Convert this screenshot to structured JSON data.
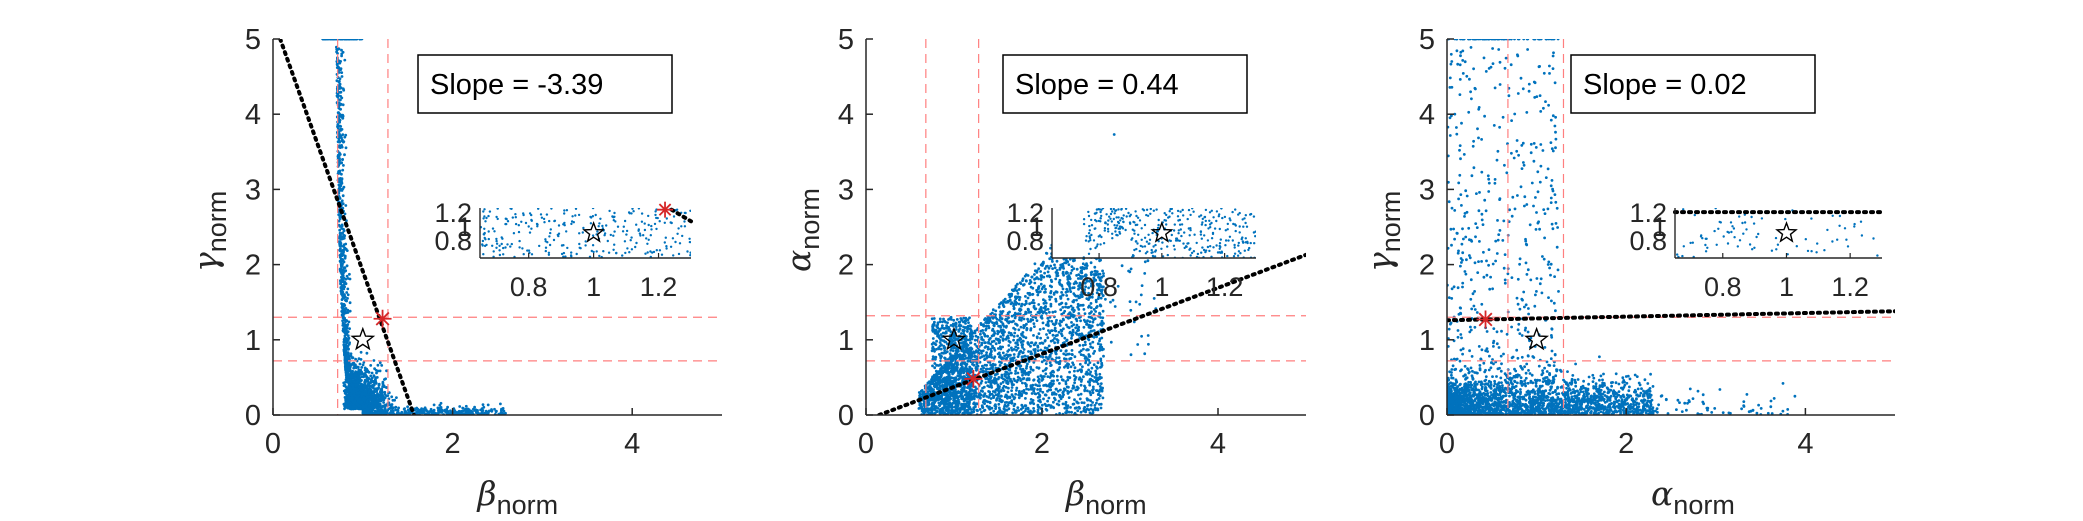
{
  "colors": {
    "points": "#0072BD",
    "guide": "#FF7F7F",
    "fit": "#000000",
    "marker": "#D62728",
    "axis": "#262626"
  },
  "chart_data": [
    {
      "type": "scatter",
      "title": "",
      "xlabel": {
        "symbol": "β",
        "sub": "norm"
      },
      "ylabel": {
        "symbol": "γ",
        "sub": "norm"
      },
      "xlim": [
        0,
        5
      ],
      "ylim": [
        0,
        5
      ],
      "xticks": [
        0,
        2,
        4
      ],
      "yticks": [
        0,
        1,
        2,
        3,
        4,
        5
      ],
      "slope_text": "Slope = -3.39",
      "guides_x": [
        0.72,
        1.28
      ],
      "guides_y": [
        0.72,
        1.3
      ],
      "fit_line": {
        "x": [
          0.08,
          1.57
        ],
        "y": [
          5.0,
          0.0
        ]
      },
      "asterisk": {
        "x": 1.22,
        "y": 1.28
      },
      "star": {
        "x": 1.0,
        "y": 1.0
      },
      "pattern": "L-shape",
      "saturated_top": {
        "x_range": [
          0.55,
          1.0
        ],
        "y": 5.0
      },
      "inset": {
        "xlim": [
          0.65,
          1.3
        ],
        "ylim": [
          0.7,
          1.3
        ],
        "xticks": [
          0.8,
          1,
          1.2
        ],
        "ytick_labels": [
          "1.2",
          "1",
          "0.8"
        ],
        "fit_line": {
          "x": [
            1.24,
            1.3
          ],
          "y": [
            1.28,
            1.14
          ]
        },
        "asterisk": {
          "x": 1.22,
          "y": 1.28
        },
        "star": {
          "x": 1.0,
          "y": 1.0
        }
      }
    },
    {
      "type": "scatter",
      "title": "",
      "xlabel": {
        "symbol": "β",
        "sub": "norm"
      },
      "ylabel": {
        "symbol": "α",
        "sub": "norm"
      },
      "xlim": [
        0,
        5
      ],
      "ylim": [
        0,
        5
      ],
      "xticks": [
        0,
        2,
        4
      ],
      "yticks": [
        0,
        1,
        2,
        3,
        4,
        5
      ],
      "slope_text": "Slope = 0.44",
      "guides_x": [
        0.68,
        1.28
      ],
      "guides_y": [
        0.72,
        1.32
      ],
      "fit_line": {
        "x": [
          0.15,
          5.0
        ],
        "y": [
          0.0,
          2.13
        ]
      },
      "asterisk": {
        "x": 1.22,
        "y": 0.48
      },
      "star": {
        "x": 1.0,
        "y": 1.0
      },
      "pattern": "cloud",
      "saturated_top": null,
      "inset": {
        "xlim": [
          0.65,
          1.3
        ],
        "ylim": [
          0.7,
          1.3
        ],
        "xticks": [
          0.8,
          1,
          1.2
        ],
        "ytick_labels": [
          "1.2",
          "1",
          "0.8"
        ],
        "fit_line": null,
        "asterisk": null,
        "star": {
          "x": 1.0,
          "y": 1.0
        }
      }
    },
    {
      "type": "scatter",
      "title": "",
      "xlabel": {
        "symbol": "α",
        "sub": "norm"
      },
      "ylabel": {
        "symbol": "γ",
        "sub": "norm"
      },
      "xlim": [
        0,
        5
      ],
      "ylim": [
        0,
        5
      ],
      "xticks": [
        0,
        2,
        4
      ],
      "yticks": [
        0,
        1,
        2,
        3,
        4,
        5
      ],
      "slope_text": "Slope = 0.02",
      "guides_x": [
        0.68,
        1.3
      ],
      "guides_y": [
        0.72,
        1.3
      ],
      "fit_line": {
        "x": [
          0.0,
          5.0
        ],
        "y": [
          1.26,
          1.38
        ]
      },
      "asterisk": {
        "x": 0.43,
        "y": 1.27
      },
      "star": {
        "x": 1.0,
        "y": 1.0
      },
      "pattern": "band",
      "saturated_top": {
        "x_range": [
          0.0,
          1.25
        ],
        "y": 5.0
      },
      "inset": {
        "xlim": [
          0.65,
          1.3
        ],
        "ylim": [
          0.7,
          1.3
        ],
        "xticks": [
          0.8,
          1,
          1.2
        ],
        "ytick_labels": [
          "1.2",
          "1",
          "0.8"
        ],
        "fit_line": {
          "x": [
            0.65,
            1.3
          ],
          "y": [
            1.25,
            1.25
          ]
        },
        "asterisk": null,
        "star": {
          "x": 1.0,
          "y": 1.0
        }
      }
    }
  ]
}
